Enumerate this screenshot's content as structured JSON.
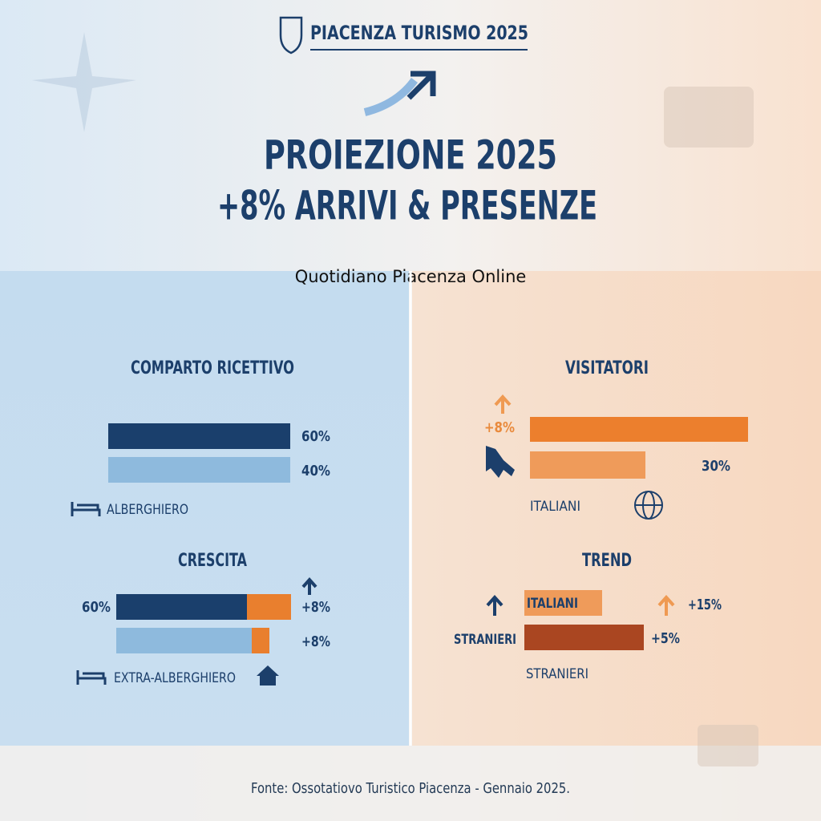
{
  "header": {
    "title": "PIACENZA TURISMO 2025"
  },
  "headline": {
    "line1": "PROIEZIONE 2025",
    "line2": "+8% ARRIVI & PRESENZE"
  },
  "overlay": "Quotidiano Piacenza Online",
  "left": {
    "comparto": {
      "title": "COMPARTO RICETTIVO",
      "labels": [
        "60%",
        "40%"
      ],
      "category": "ALBERGHIERO"
    },
    "crescita": {
      "title": "CRESCITA",
      "share": "60%",
      "labels": [
        "+8%",
        "+8%"
      ],
      "category": "EXTRA-ALBERGHIERO"
    }
  },
  "right": {
    "visitatori": {
      "title": "VISITATORI",
      "growth": "+8%",
      "share": "30%",
      "category": "ITALIANI"
    },
    "trend": {
      "title": "TREND",
      "bar_labels": [
        "ITALIANI",
        "STRANIERI"
      ],
      "values": [
        "+15%",
        "+5%"
      ],
      "caption": "STRANIERI"
    }
  },
  "footer": "Fonte: Ossotatiovo Turistico Piacenza - Gennaio 2025."
}
